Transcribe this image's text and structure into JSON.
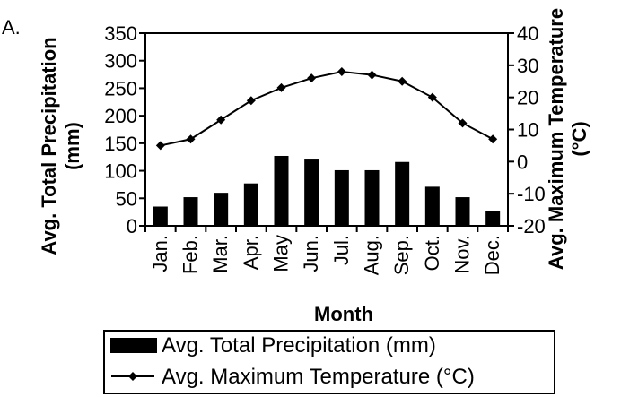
{
  "panel_label": "A.",
  "chart_data": {
    "type": "bar",
    "categories": [
      "Jan.",
      "Feb.",
      "Mar.",
      "Apr.",
      "May",
      "Jun.",
      "Jul.",
      "Aug.",
      "Sep.",
      "Oct.",
      "Nov.",
      "Dec."
    ],
    "series": [
      {
        "name": "Avg. Total Precipitation (mm)",
        "type": "bar",
        "axis": "left",
        "values": [
          35,
          52,
          60,
          77,
          127,
          122,
          101,
          101,
          116,
          71,
          52,
          27
        ]
      },
      {
        "name": "Avg. Maximum Temperature (°C)",
        "type": "line",
        "axis": "right",
        "values": [
          5,
          7,
          13,
          19,
          23,
          26,
          28,
          27,
          25,
          20,
          12,
          7
        ]
      }
    ],
    "xlabel": "Month",
    "ylabel_left": "Avg. Total Precipitation (mm)",
    "ylabel_right": "Avg. Maximum Temperature (°C)",
    "ylim_left": [
      0,
      350
    ],
    "ylim_right": [
      -20,
      40
    ],
    "yticks_left": [
      "0",
      "50",
      "100",
      "150",
      "200",
      "250",
      "300",
      "350"
    ],
    "yticks_right": [
      "-20",
      "-10",
      "0",
      "10",
      "20",
      "30",
      "40"
    ],
    "grid": false,
    "legend_placement": "bottom",
    "colors": {
      "bar": "#000000",
      "line": "#000000"
    }
  }
}
